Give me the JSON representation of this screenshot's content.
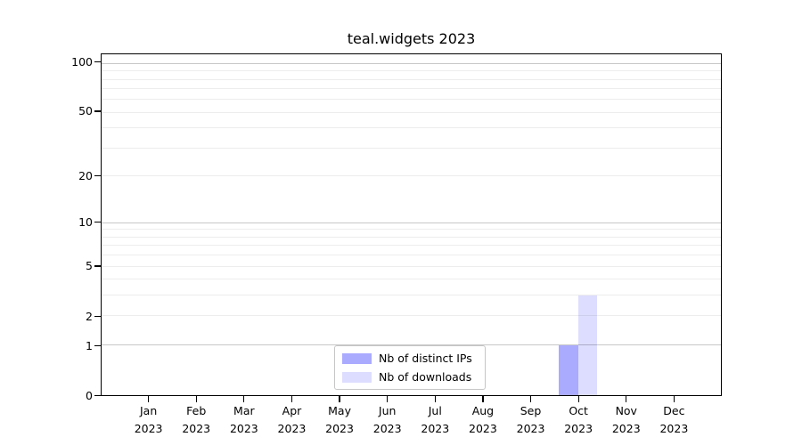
{
  "chart_data": {
    "type": "bar",
    "title": "teal.widgets 2023",
    "year_label": "2023",
    "categories": [
      "Jan",
      "Feb",
      "Mar",
      "Apr",
      "May",
      "Jun",
      "Jul",
      "Aug",
      "Sep",
      "Oct",
      "Nov",
      "Dec"
    ],
    "series": [
      {
        "name": "Nb of distinct IPs",
        "color": "#aaaaff",
        "values": [
          0,
          0,
          0,
          0,
          0,
          0,
          0,
          0,
          0,
          1,
          0,
          0
        ]
      },
      {
        "name": "Nb of downloads",
        "color": "#ddddff",
        "values": [
          0,
          0,
          0,
          0,
          0,
          0,
          0,
          0,
          0,
          3,
          0,
          0
        ]
      }
    ],
    "yticks": [
      0,
      1,
      2,
      5,
      10,
      20,
      50,
      100
    ],
    "gridlines": [
      1,
      2,
      3,
      4,
      5,
      6,
      7,
      8,
      9,
      10,
      20,
      30,
      40,
      50,
      60,
      70,
      80,
      90,
      100
    ],
    "major_gridlines": [
      1,
      10,
      100
    ],
    "ylim": [
      0,
      100
    ],
    "scale": "log1p",
    "grid": true,
    "legend_position": "bottom-center",
    "colors": {
      "spine": "#000000",
      "major_grid": "#c8c8c8",
      "minor_grid": "#ededed",
      "legend_border": "#c6c6c6",
      "background": "#ffffff"
    }
  }
}
